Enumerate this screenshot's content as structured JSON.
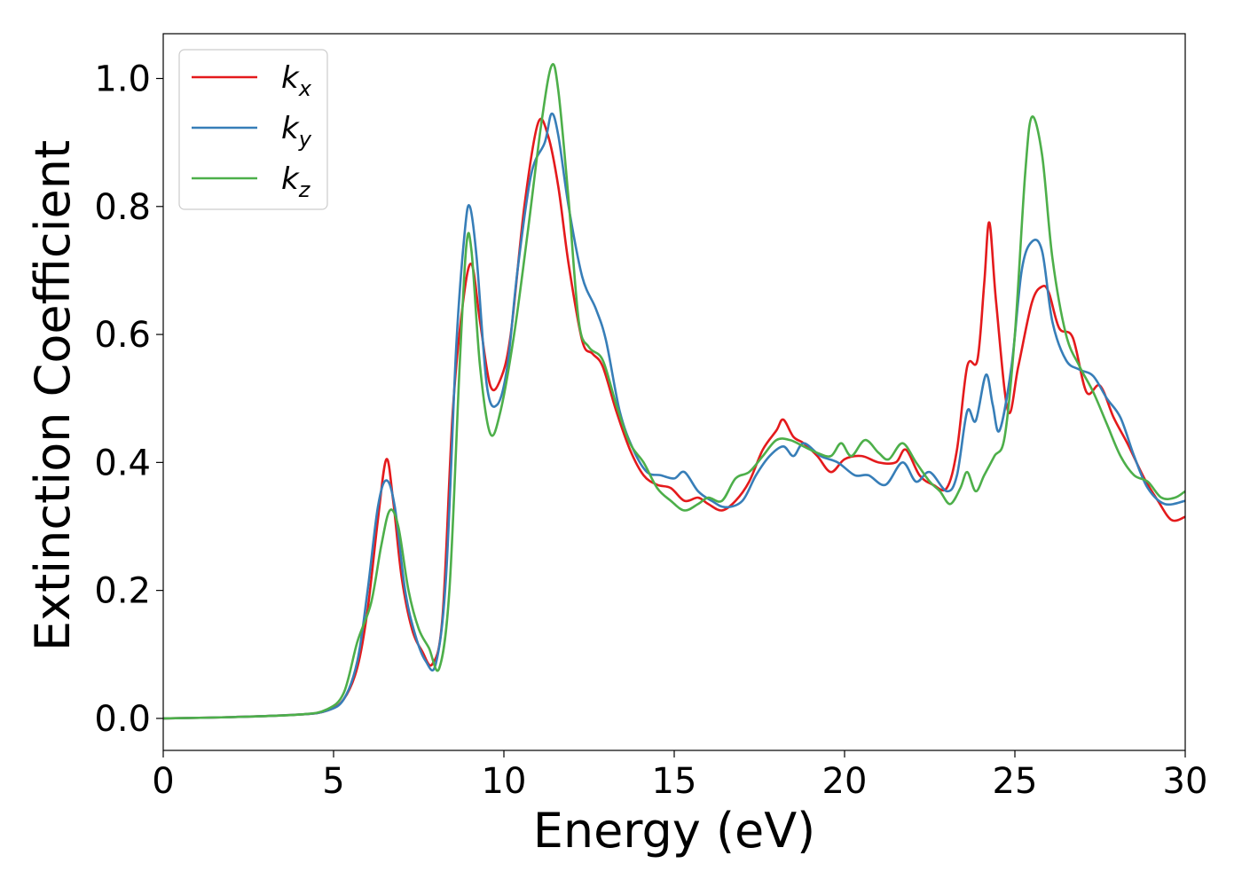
{
  "chart_data": {
    "type": "line",
    "xlabel": "Energy (eV)",
    "ylabel": "Extinction Coefficient",
    "xlim": [
      0,
      30
    ],
    "ylim": [
      -0.05,
      1.07
    ],
    "x_ticks": [
      "0",
      "5",
      "10",
      "15",
      "20",
      "25",
      "30"
    ],
    "y_ticks": [
      "0.0",
      "0.2",
      "0.4",
      "0.6",
      "0.8",
      "1.0"
    ],
    "grid": false,
    "legend_position": "top-left",
    "series": [
      {
        "name": "k",
        "subscript": "x",
        "color": "#e41a1c",
        "points": [
          [
            0,
            0.0
          ],
          [
            2,
            0.002
          ],
          [
            4,
            0.006
          ],
          [
            4.8,
            0.012
          ],
          [
            5.3,
            0.03
          ],
          [
            5.7,
            0.08
          ],
          [
            6.0,
            0.17
          ],
          [
            6.3,
            0.31
          ],
          [
            6.55,
            0.405
          ],
          [
            6.75,
            0.34
          ],
          [
            7.0,
            0.22
          ],
          [
            7.3,
            0.14
          ],
          [
            7.6,
            0.105
          ],
          [
            7.9,
            0.085
          ],
          [
            8.2,
            0.16
          ],
          [
            8.5,
            0.48
          ],
          [
            8.8,
            0.65
          ],
          [
            9.05,
            0.71
          ],
          [
            9.3,
            0.62
          ],
          [
            9.6,
            0.52
          ],
          [
            9.9,
            0.53
          ],
          [
            10.2,
            0.6
          ],
          [
            10.6,
            0.8
          ],
          [
            11.0,
            0.93
          ],
          [
            11.3,
            0.91
          ],
          [
            11.6,
            0.83
          ],
          [
            11.9,
            0.71
          ],
          [
            12.3,
            0.59
          ],
          [
            12.6,
            0.57
          ],
          [
            12.9,
            0.55
          ],
          [
            13.3,
            0.48
          ],
          [
            13.7,
            0.42
          ],
          [
            14.1,
            0.38
          ],
          [
            14.5,
            0.365
          ],
          [
            14.9,
            0.36
          ],
          [
            15.3,
            0.34
          ],
          [
            15.7,
            0.345
          ],
          [
            16.0,
            0.335
          ],
          [
            16.4,
            0.325
          ],
          [
            16.8,
            0.34
          ],
          [
            17.2,
            0.37
          ],
          [
            17.6,
            0.42
          ],
          [
            18.0,
            0.45
          ],
          [
            18.2,
            0.467
          ],
          [
            18.5,
            0.44
          ],
          [
            18.8,
            0.43
          ],
          [
            19.2,
            0.41
          ],
          [
            19.6,
            0.385
          ],
          [
            20.0,
            0.405
          ],
          [
            20.5,
            0.41
          ],
          [
            21.0,
            0.4
          ],
          [
            21.5,
            0.4
          ],
          [
            21.8,
            0.42
          ],
          [
            22.2,
            0.38
          ],
          [
            22.6,
            0.365
          ],
          [
            23.0,
            0.36
          ],
          [
            23.3,
            0.42
          ],
          [
            23.6,
            0.55
          ],
          [
            23.9,
            0.56
          ],
          [
            24.1,
            0.68
          ],
          [
            24.25,
            0.775
          ],
          [
            24.45,
            0.65
          ],
          [
            24.8,
            0.48
          ],
          [
            25.1,
            0.55
          ],
          [
            25.5,
            0.65
          ],
          [
            25.8,
            0.675
          ],
          [
            26.0,
            0.665
          ],
          [
            26.3,
            0.61
          ],
          [
            26.7,
            0.595
          ],
          [
            27.1,
            0.51
          ],
          [
            27.5,
            0.52
          ],
          [
            27.9,
            0.47
          ],
          [
            28.3,
            0.43
          ],
          [
            28.8,
            0.375
          ],
          [
            29.2,
            0.34
          ],
          [
            29.6,
            0.31
          ],
          [
            30.0,
            0.315
          ]
        ]
      },
      {
        "name": "k",
        "subscript": "y",
        "color": "#377eb8",
        "points": [
          [
            0,
            0.0
          ],
          [
            2,
            0.002
          ],
          [
            4,
            0.006
          ],
          [
            4.8,
            0.012
          ],
          [
            5.3,
            0.03
          ],
          [
            5.7,
            0.09
          ],
          [
            6.0,
            0.2
          ],
          [
            6.3,
            0.33
          ],
          [
            6.55,
            0.372
          ],
          [
            6.8,
            0.33
          ],
          [
            7.1,
            0.2
          ],
          [
            7.4,
            0.13
          ],
          [
            7.7,
            0.09
          ],
          [
            8.0,
            0.085
          ],
          [
            8.3,
            0.22
          ],
          [
            8.6,
            0.58
          ],
          [
            8.85,
            0.76
          ],
          [
            9.0,
            0.8
          ],
          [
            9.2,
            0.72
          ],
          [
            9.5,
            0.52
          ],
          [
            9.8,
            0.49
          ],
          [
            10.1,
            0.55
          ],
          [
            10.4,
            0.7
          ],
          [
            10.8,
            0.85
          ],
          [
            11.2,
            0.9
          ],
          [
            11.4,
            0.945
          ],
          [
            11.6,
            0.91
          ],
          [
            11.9,
            0.8
          ],
          [
            12.3,
            0.69
          ],
          [
            12.7,
            0.64
          ],
          [
            13.0,
            0.59
          ],
          [
            13.4,
            0.48
          ],
          [
            13.8,
            0.42
          ],
          [
            14.2,
            0.385
          ],
          [
            14.6,
            0.38
          ],
          [
            15.0,
            0.375
          ],
          [
            15.3,
            0.385
          ],
          [
            15.7,
            0.355
          ],
          [
            16.1,
            0.34
          ],
          [
            16.5,
            0.33
          ],
          [
            17.0,
            0.34
          ],
          [
            17.4,
            0.38
          ],
          [
            17.8,
            0.41
          ],
          [
            18.2,
            0.425
          ],
          [
            18.5,
            0.41
          ],
          [
            18.8,
            0.43
          ],
          [
            19.3,
            0.41
          ],
          [
            19.8,
            0.4
          ],
          [
            20.3,
            0.38
          ],
          [
            20.7,
            0.38
          ],
          [
            21.2,
            0.365
          ],
          [
            21.7,
            0.4
          ],
          [
            22.1,
            0.37
          ],
          [
            22.5,
            0.385
          ],
          [
            23.0,
            0.355
          ],
          [
            23.3,
            0.38
          ],
          [
            23.6,
            0.48
          ],
          [
            23.85,
            0.465
          ],
          [
            24.15,
            0.537
          ],
          [
            24.35,
            0.49
          ],
          [
            24.55,
            0.45
          ],
          [
            24.9,
            0.55
          ],
          [
            25.2,
            0.7
          ],
          [
            25.5,
            0.745
          ],
          [
            25.8,
            0.73
          ],
          [
            26.1,
            0.62
          ],
          [
            26.5,
            0.56
          ],
          [
            26.9,
            0.545
          ],
          [
            27.3,
            0.535
          ],
          [
            27.7,
            0.5
          ],
          [
            28.1,
            0.47
          ],
          [
            28.5,
            0.41
          ],
          [
            28.9,
            0.36
          ],
          [
            29.4,
            0.335
          ],
          [
            30.0,
            0.34
          ]
        ]
      },
      {
        "name": "k",
        "subscript": "z",
        "color": "#4daf4a",
        "points": [
          [
            0,
            0.0
          ],
          [
            2,
            0.002
          ],
          [
            4,
            0.006
          ],
          [
            4.8,
            0.014
          ],
          [
            5.3,
            0.04
          ],
          [
            5.7,
            0.12
          ],
          [
            6.1,
            0.18
          ],
          [
            6.4,
            0.27
          ],
          [
            6.65,
            0.325
          ],
          [
            6.9,
            0.3
          ],
          [
            7.2,
            0.2
          ],
          [
            7.5,
            0.14
          ],
          [
            7.8,
            0.11
          ],
          [
            8.1,
            0.078
          ],
          [
            8.4,
            0.2
          ],
          [
            8.7,
            0.55
          ],
          [
            8.9,
            0.74
          ],
          [
            9.05,
            0.73
          ],
          [
            9.3,
            0.55
          ],
          [
            9.6,
            0.445
          ],
          [
            9.9,
            0.48
          ],
          [
            10.3,
            0.6
          ],
          [
            10.7,
            0.76
          ],
          [
            11.1,
            0.93
          ],
          [
            11.4,
            1.02
          ],
          [
            11.6,
            0.98
          ],
          [
            11.9,
            0.81
          ],
          [
            12.2,
            0.62
          ],
          [
            12.5,
            0.58
          ],
          [
            12.9,
            0.56
          ],
          [
            13.3,
            0.49
          ],
          [
            13.7,
            0.43
          ],
          [
            14.1,
            0.4
          ],
          [
            14.5,
            0.36
          ],
          [
            14.9,
            0.34
          ],
          [
            15.3,
            0.325
          ],
          [
            15.7,
            0.335
          ],
          [
            16.0,
            0.345
          ],
          [
            16.4,
            0.34
          ],
          [
            16.8,
            0.375
          ],
          [
            17.2,
            0.385
          ],
          [
            17.6,
            0.41
          ],
          [
            18.0,
            0.435
          ],
          [
            18.4,
            0.435
          ],
          [
            18.8,
            0.425
          ],
          [
            19.2,
            0.415
          ],
          [
            19.6,
            0.41
          ],
          [
            19.9,
            0.43
          ],
          [
            20.2,
            0.41
          ],
          [
            20.6,
            0.435
          ],
          [
            21.0,
            0.415
          ],
          [
            21.3,
            0.405
          ],
          [
            21.7,
            0.43
          ],
          [
            22.1,
            0.4
          ],
          [
            22.5,
            0.37
          ],
          [
            22.8,
            0.355
          ],
          [
            23.1,
            0.335
          ],
          [
            23.4,
            0.36
          ],
          [
            23.6,
            0.385
          ],
          [
            23.85,
            0.355
          ],
          [
            24.1,
            0.38
          ],
          [
            24.4,
            0.41
          ],
          [
            24.7,
            0.44
          ],
          [
            25.0,
            0.6
          ],
          [
            25.3,
            0.85
          ],
          [
            25.5,
            0.94
          ],
          [
            25.8,
            0.88
          ],
          [
            26.1,
            0.72
          ],
          [
            26.5,
            0.6
          ],
          [
            26.9,
            0.55
          ],
          [
            27.3,
            0.51
          ],
          [
            27.7,
            0.46
          ],
          [
            28.1,
            0.41
          ],
          [
            28.5,
            0.38
          ],
          [
            28.9,
            0.37
          ],
          [
            29.3,
            0.345
          ],
          [
            29.7,
            0.345
          ],
          [
            30.0,
            0.355
          ]
        ]
      }
    ]
  }
}
